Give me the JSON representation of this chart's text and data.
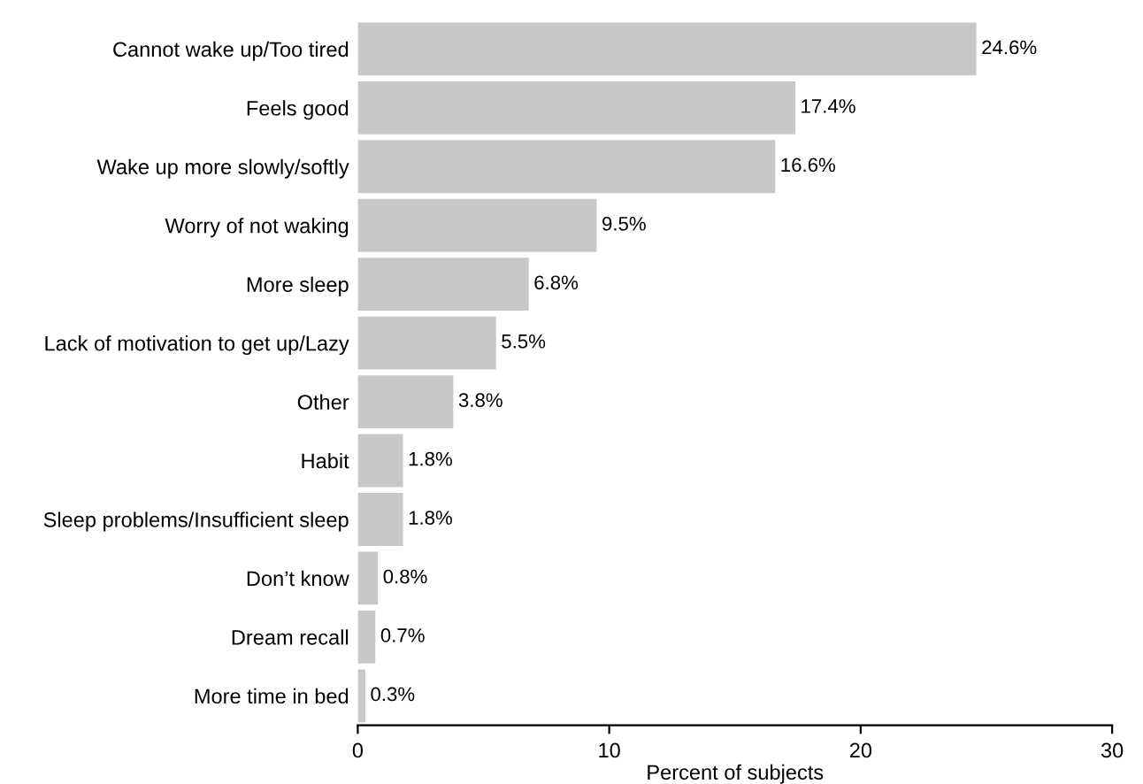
{
  "chart_data": {
    "type": "bar",
    "orientation": "horizontal",
    "xlabel": "Percent of subjects",
    "categories": [
      "Cannot wake up/Too tired",
      "Feels good",
      "Wake up more slowly/softly",
      "Worry of not waking",
      "More sleep",
      "Lack of motivation to get up/Lazy",
      "Other",
      "Habit",
      "Sleep problems/Insufficient sleep",
      "Don’t know",
      "Dream recall",
      "More time in bed"
    ],
    "values": [
      24.6,
      17.4,
      16.6,
      9.5,
      6.8,
      5.5,
      3.8,
      1.8,
      1.8,
      0.8,
      0.7,
      0.3
    ],
    "value_labels": [
      "24.6%",
      "17.4%",
      "16.6%",
      "9.5%",
      "6.8%",
      "5.5%",
      "3.8%",
      "1.8%",
      "1.8%",
      "0.8%",
      "0.7%",
      "0.3%"
    ],
    "color": "#c8c8c8",
    "xlim": [
      0,
      30
    ],
    "xticks": [
      0,
      10,
      20,
      30
    ],
    "grid": false,
    "legend": false
  }
}
